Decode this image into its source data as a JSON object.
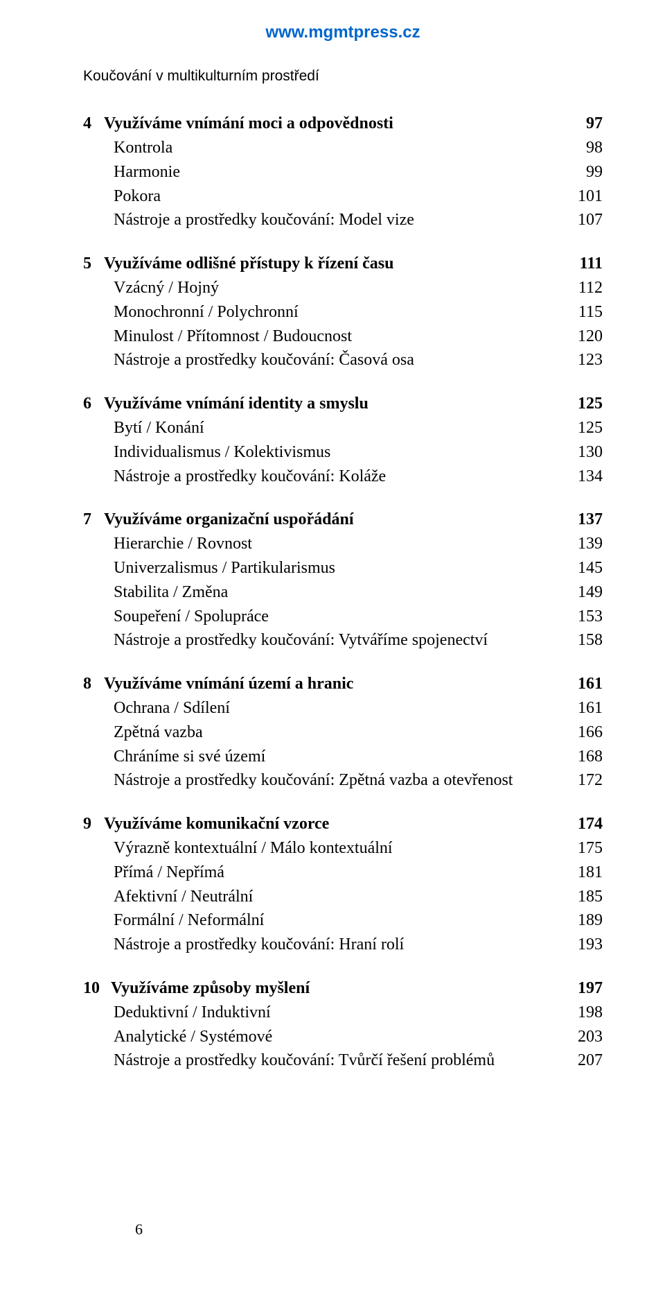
{
  "header": {
    "site_url": "www.mgmtpress.cz",
    "running_head": "Koučování v multikulturním prostředí"
  },
  "footer": {
    "page_number": "6"
  },
  "chapters": [
    {
      "number": "4",
      "title": "Využíváme vnímání moci a odpovědnosti",
      "page": "97",
      "entries": [
        {
          "label": "Kontrola",
          "page": "98"
        },
        {
          "label": "Harmonie",
          "page": "99"
        },
        {
          "label": "Pokora",
          "page": "101"
        },
        {
          "label": "Nástroje a prostředky koučování: Model vize",
          "page": "107"
        }
      ]
    },
    {
      "number": "5",
      "title": "Využíváme odlišné přístupy k řízení času",
      "page": "111",
      "entries": [
        {
          "label": "Vzácný / Hojný",
          "page": "112"
        },
        {
          "label": "Monochronní / Polychronní",
          "page": "115"
        },
        {
          "label": "Minulost / Přítomnost / Budoucnost",
          "page": "120"
        },
        {
          "label": "Nástroje a prostředky koučování: Časová osa",
          "page": "123"
        }
      ]
    },
    {
      "number": "6",
      "title": "Využíváme vnímání identity a smyslu",
      "page": "125",
      "entries": [
        {
          "label": "Bytí / Konání",
          "page": "125"
        },
        {
          "label": "Individualismus / Kolektivismus",
          "page": "130"
        },
        {
          "label": "Nástroje a prostředky koučování: Koláže",
          "page": "134"
        }
      ]
    },
    {
      "number": "7",
      "title": "Využíváme organizační uspořádání",
      "page": "137",
      "entries": [
        {
          "label": "Hierarchie / Rovnost",
          "page": "139"
        },
        {
          "label": "Univerzalismus / Partikularismus",
          "page": "145"
        },
        {
          "label": "Stabilita / Změna",
          "page": "149"
        },
        {
          "label": "Soupeření / Spolupráce",
          "page": "153"
        },
        {
          "label": "Nástroje a prostředky koučování: Vytváříme spojenectví",
          "page": "158"
        }
      ]
    },
    {
      "number": "8",
      "title": "Využíváme vnímání území a hranic",
      "page": "161",
      "entries": [
        {
          "label": "Ochrana / Sdílení",
          "page": "161"
        },
        {
          "label": "Zpětná vazba",
          "page": "166"
        },
        {
          "label": "Chráníme si své území",
          "page": "168"
        },
        {
          "label": "Nástroje a prostředky koučování: Zpětná vazba a otevřenost",
          "page": "172"
        }
      ]
    },
    {
      "number": "9",
      "title": "Využíváme komunikační vzorce",
      "page": "174",
      "entries": [
        {
          "label": "Výrazně kontextuální / Málo kontextuální",
          "page": "175"
        },
        {
          "label": "Přímá / Nepřímá",
          "page": "181"
        },
        {
          "label": "Afektivní / Neutrální",
          "page": "185"
        },
        {
          "label": "Formální / Neformální",
          "page": "189"
        },
        {
          "label": "Nástroje a prostředky koučování: Hraní rolí",
          "page": "193"
        }
      ]
    },
    {
      "number": "10",
      "title": "Využíváme způsoby myšlení",
      "page": "197",
      "entries": [
        {
          "label": "Deduktivní / Induktivní",
          "page": "198"
        },
        {
          "label": "Analytické / Systémové",
          "page": "203"
        },
        {
          "label": "Nástroje a prostředky koučování: Tvůrčí řešení problémů",
          "page": "207"
        }
      ]
    }
  ]
}
